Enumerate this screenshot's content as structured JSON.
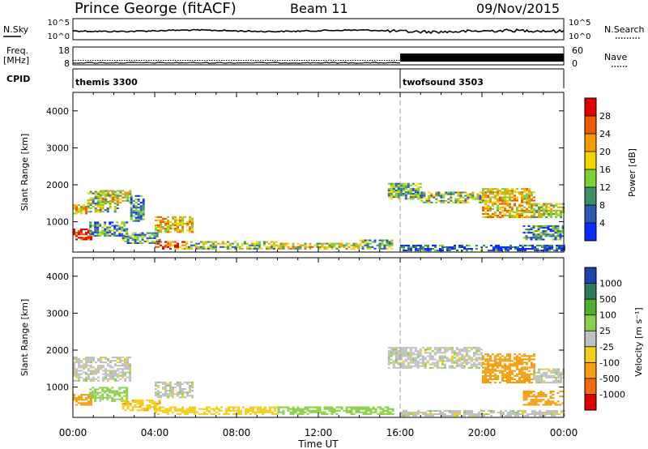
{
  "header": {
    "station": "Prince George (fitACF)",
    "beam": "Beam 11",
    "date": "09/Nov/2015"
  },
  "labels": {
    "nsky": "N.Sky",
    "nsearch": "N.Search",
    "freq_line1": "Freq.",
    "freq_line2": "[MHz]",
    "nave": "Nave",
    "cpid": "CPID",
    "time_axis": "Time UT"
  },
  "cpid_segments": [
    {
      "name": "themis 3300",
      "start_hour": 0,
      "end_hour": 16
    },
    {
      "name": "twofsound 3503",
      "start_hour": 16,
      "end_hour": 24
    }
  ],
  "chart_data": [
    {
      "type": "line",
      "name": "noise",
      "left_ticks": [
        "10^5",
        "10^0"
      ],
      "right_ticks": [
        "10^5",
        "10^0"
      ],
      "left_label": "N.Sky",
      "right_label": "N.Search"
    },
    {
      "type": "line",
      "name": "freq-nave",
      "left_ticks": [
        18,
        8
      ],
      "right_ticks": [
        60,
        0
      ],
      "freq_mhz": [
        {
          "from": 0,
          "to": 24,
          "value": 10.5
        }
      ],
      "nave_dense_from_hour": 16
    },
    {
      "type": "heatmap",
      "name": "power",
      "ylabel": "Slant Range [km]",
      "ylim": [
        180,
        4500
      ],
      "yticks": [
        1000,
        2000,
        3000,
        4000
      ],
      "x_range_hours": [
        0,
        24
      ],
      "xtick_labels": [
        "00:00",
        "04:00",
        "08:00",
        "12:00",
        "16:00",
        "20:00",
        "00:00"
      ],
      "colorbar": {
        "label": "Power [dB]",
        "ticks": [
          4,
          8,
          12,
          16,
          20,
          24,
          28
        ],
        "colors": [
          "#0b2bff",
          "#2b59b0",
          "#3e8f64",
          "#7dd036",
          "#f2d400",
          "#f59a00",
          "#f05a00",
          "#e00000"
        ]
      },
      "echo_regions": [
        {
          "t0": 0.0,
          "t1": 0.9,
          "r0": 500,
          "r1": 800,
          "v": 29
        },
        {
          "t0": 0.0,
          "t1": 0.7,
          "r0": 1200,
          "r1": 1450,
          "v": 20
        },
        {
          "t0": 0.7,
          "t1": 2.2,
          "r0": 1250,
          "r1": 1800,
          "v": 14
        },
        {
          "t0": 1.2,
          "t1": 2.8,
          "r0": 1500,
          "r1": 1850,
          "v": 18
        },
        {
          "t0": 0.8,
          "t1": 2.6,
          "r0": 600,
          "r1": 1000,
          "v": 9
        },
        {
          "t0": 2.4,
          "t1": 4.2,
          "r0": 400,
          "r1": 700,
          "v": 10
        },
        {
          "t0": 4.0,
          "t1": 5.8,
          "r0": 700,
          "r1": 1150,
          "v": 20
        },
        {
          "t0": 4.0,
          "t1": 5.5,
          "r0": 250,
          "r1": 450,
          "v": 26
        },
        {
          "t0": 5.5,
          "t1": 10.0,
          "r0": 250,
          "r1": 450,
          "v": 14
        },
        {
          "t0": 10.0,
          "t1": 14.0,
          "r0": 250,
          "r1": 420,
          "v": 18
        },
        {
          "t0": 14.0,
          "t1": 15.6,
          "r0": 250,
          "r1": 500,
          "v": 12
        },
        {
          "t0": 2.8,
          "t1": 3.4,
          "r0": 1000,
          "r1": 1700,
          "v": 8
        },
        {
          "t0": 15.4,
          "t1": 17.0,
          "r0": 1600,
          "r1": 2050,
          "v": 12
        },
        {
          "t0": 17.0,
          "t1": 20.0,
          "r0": 1500,
          "r1": 1800,
          "v": 14
        },
        {
          "t0": 20.0,
          "t1": 22.5,
          "r0": 1100,
          "r1": 1900,
          "v": 20
        },
        {
          "t0": 22.5,
          "t1": 24.0,
          "r0": 1100,
          "r1": 1500,
          "v": 16
        },
        {
          "t0": 22.0,
          "t1": 24.0,
          "r0": 500,
          "r1": 900,
          "v": 9
        },
        {
          "t0": 16.0,
          "t1": 24.0,
          "r0": 200,
          "r1": 350,
          "v": 5
        }
      ]
    },
    {
      "type": "heatmap",
      "name": "velocity",
      "ylabel": "Slant Range [km]",
      "ylim": [
        180,
        4500
      ],
      "yticks": [
        1000,
        2000,
        3000,
        4000
      ],
      "x_range_hours": [
        0,
        24
      ],
      "xtick_labels": [
        "00:00",
        "04:00",
        "08:00",
        "12:00",
        "16:00",
        "20:00",
        "00:00"
      ],
      "colorbar": {
        "label": "Velocity [m s⁻¹]",
        "ticks": [
          "1000",
          "500",
          "100",
          "25",
          "-25",
          "-100",
          "-500",
          "-1000"
        ],
        "colors": [
          "#2040b0",
          "#2e7a5a",
          "#4fb030",
          "#8ad048",
          "#c0c0c0",
          "#f2cf1a",
          "#f5a012",
          "#f06a12",
          "#e00000"
        ]
      },
      "echo_regions": [
        {
          "t0": 0.0,
          "t1": 0.9,
          "r0": 500,
          "r1": 800,
          "v": -150
        },
        {
          "t0": 0.0,
          "t1": 2.8,
          "r0": 1150,
          "r1": 1800,
          "v": 0
        },
        {
          "t0": 0.8,
          "t1": 2.6,
          "r0": 600,
          "r1": 1000,
          "v": 50
        },
        {
          "t0": 2.4,
          "t1": 4.2,
          "r0": 350,
          "r1": 650,
          "v": -80
        },
        {
          "t0": 4.0,
          "t1": 5.8,
          "r0": 700,
          "r1": 1150,
          "v": 0
        },
        {
          "t0": 4.0,
          "t1": 10.0,
          "r0": 250,
          "r1": 450,
          "v": -60
        },
        {
          "t0": 10.0,
          "t1": 15.6,
          "r0": 250,
          "r1": 450,
          "v": 60
        },
        {
          "t0": 15.4,
          "t1": 20.0,
          "r0": 1500,
          "r1": 2050,
          "v": 0
        },
        {
          "t0": 20.0,
          "t1": 22.5,
          "r0": 1100,
          "r1": 1900,
          "v": -400
        },
        {
          "t0": 22.5,
          "t1": 24.0,
          "r0": 1100,
          "r1": 1500,
          "v": 0
        },
        {
          "t0": 22.0,
          "t1": 24.0,
          "r0": 500,
          "r1": 900,
          "v": -150
        },
        {
          "t0": 16.0,
          "t1": 24.0,
          "r0": 200,
          "r1": 350,
          "v": 0
        }
      ]
    }
  ]
}
